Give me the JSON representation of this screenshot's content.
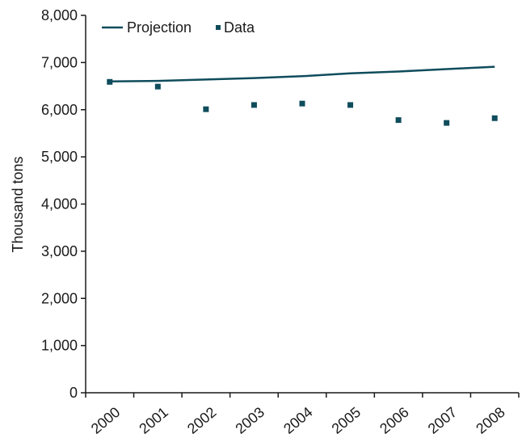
{
  "chart_data": {
    "type": "line",
    "title": "",
    "xlabel": "",
    "ylabel": "Thousand tons",
    "categories": [
      "2000",
      "2001",
      "2002",
      "2003",
      "2004",
      "2005",
      "2006",
      "2007",
      "2008"
    ],
    "y_ticks": [
      "0",
      "1,000",
      "2,000",
      "3,000",
      "4,000",
      "5,000",
      "6,000",
      "7,000",
      "8,000"
    ],
    "ylim": [
      0,
      8000
    ],
    "grid": false,
    "legend_position": "top-left",
    "series": [
      {
        "name": "Projection",
        "style": "line",
        "color": "#0f4c5c",
        "values": [
          6600,
          6610,
          6640,
          6670,
          6710,
          6770,
          6810,
          6860,
          6910
        ]
      },
      {
        "name": "Data",
        "style": "markers",
        "color": "#0f4c5c",
        "values": [
          6590,
          6490,
          6010,
          6100,
          6130,
          6100,
          5780,
          5720,
          5820
        ]
      }
    ]
  }
}
